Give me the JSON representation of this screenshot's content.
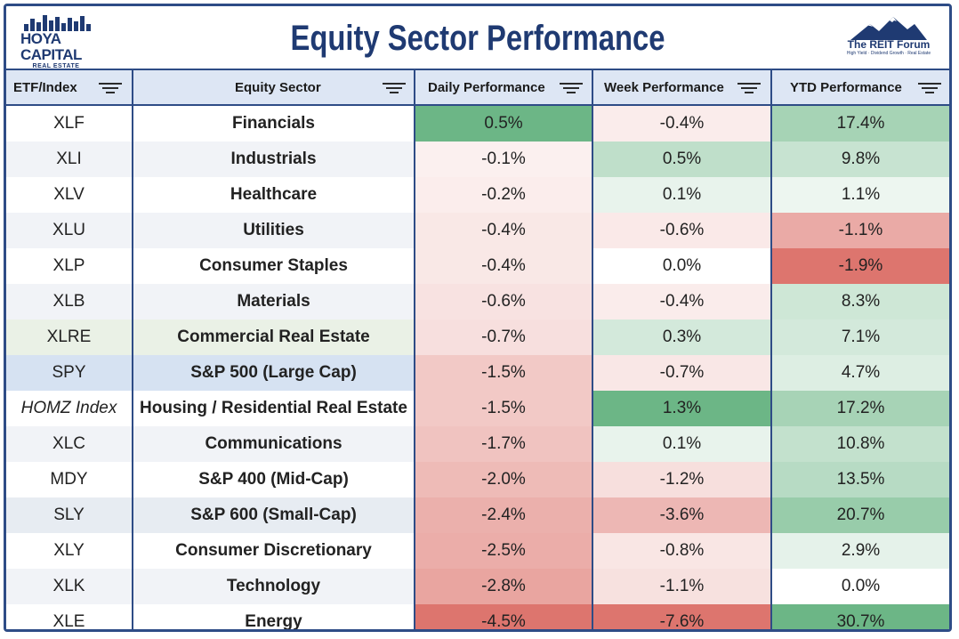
{
  "header": {
    "title": "Equity Sector Performance",
    "left_logo": {
      "brand": "HOYA CAPITAL",
      "sub": "REAL ESTATE"
    },
    "right_logo": {
      "name": "The REIT Forum",
      "tag": "High Yield · Dividend Growth · Real Estate"
    }
  },
  "columns": [
    "ETF/Index",
    "Equity Sector",
    "Daily Performance",
    "Week Performance",
    "YTD Performance"
  ],
  "rows": [
    {
      "ticker": "XLF",
      "sector": "Financials",
      "daily": "0.5%",
      "week": "-0.4%",
      "ytd": "17.4%"
    },
    {
      "ticker": "XLI",
      "sector": "Industrials",
      "daily": "-0.1%",
      "week": "0.5%",
      "ytd": "9.8%"
    },
    {
      "ticker": "XLV",
      "sector": "Healthcare",
      "daily": "-0.2%",
      "week": "0.1%",
      "ytd": "1.1%"
    },
    {
      "ticker": "XLU",
      "sector": "Utilities",
      "daily": "-0.4%",
      "week": "-0.6%",
      "ytd": "-1.1%"
    },
    {
      "ticker": "XLP",
      "sector": "Consumer Staples",
      "daily": "-0.4%",
      "week": "0.0%",
      "ytd": "-1.9%"
    },
    {
      "ticker": "XLB",
      "sector": "Materials",
      "daily": "-0.6%",
      "week": "-0.4%",
      "ytd": "8.3%"
    },
    {
      "ticker": "XLRE",
      "sector": "Commercial Real Estate",
      "daily": "-0.7%",
      "week": "0.3%",
      "ytd": "7.1%"
    },
    {
      "ticker": "SPY",
      "sector": "S&P 500 (Large Cap)",
      "daily": "-1.5%",
      "week": "-0.7%",
      "ytd": "4.7%"
    },
    {
      "ticker": "HOMZ Index",
      "sector": "Housing / Residential Real Estate",
      "daily": "-1.5%",
      "week": "1.3%",
      "ytd": "17.2%"
    },
    {
      "ticker": "XLC",
      "sector": "Communications",
      "daily": "-1.7%",
      "week": "0.1%",
      "ytd": "10.8%"
    },
    {
      "ticker": "MDY",
      "sector": "S&P 400 (Mid-Cap)",
      "daily": "-2.0%",
      "week": "-1.2%",
      "ytd": "13.5%"
    },
    {
      "ticker": "SLY",
      "sector": "S&P 600 (Small-Cap)",
      "daily": "-2.4%",
      "week": "-3.6%",
      "ytd": "20.7%"
    },
    {
      "ticker": "XLY",
      "sector": "Consumer Discretionary",
      "daily": "-2.5%",
      "week": "-0.8%",
      "ytd": "2.9%"
    },
    {
      "ticker": "XLK",
      "sector": "Technology",
      "daily": "-2.8%",
      "week": "-1.1%",
      "ytd": "0.0%"
    },
    {
      "ticker": "XLE",
      "sector": "Energy",
      "daily": "-4.5%",
      "week": "-7.6%",
      "ytd": "30.7%"
    }
  ],
  "colors": {
    "border": "#2e4c86",
    "header_bg": "#dde6f4",
    "title": "#1f3a72",
    "positive": "#5cae78",
    "negative": "#d9665e",
    "row_stripe_odd": "#ffffff",
    "row_stripe_even": "#f1f3f7",
    "highlight_xlre": "#eaf1e6",
    "highlight_spy": "#d6e2f2",
    "highlight_sly": "#e7ecf2"
  }
}
